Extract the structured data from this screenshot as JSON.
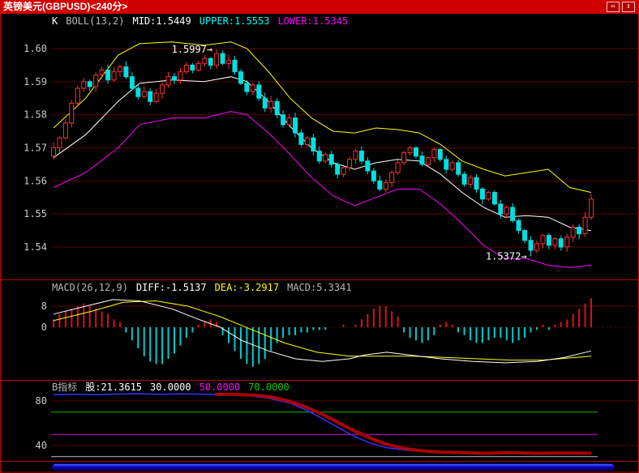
{
  "window": {
    "title": "英镑美元(GBPUSD)<240分>",
    "controls": [
      {
        "icon": "arrows-horizontal-icon",
        "glyph": "⇔"
      },
      {
        "icon": "arrows-vertical-icon",
        "glyph": "⇕"
      }
    ]
  },
  "colors": {
    "titlebar_bg": "#d00000",
    "frame": "#c00000",
    "grid": "#5a0000",
    "axis_text": "#c8c8c8",
    "up": "#ff3030",
    "down": "#00e0e0",
    "boll_upper": "#ffff00",
    "boll_mid": "#ffffff",
    "boll_lower": "#ff00ff",
    "macd_pos": "#dd1111",
    "macd_neg": "#00cccc",
    "diff": "#ffffff",
    "dea": "#ffff00",
    "b_blue": "#3333ff",
    "b_red": "#aa0000",
    "scrollbar": "#0000bb"
  },
  "main_panel": {
    "header": {
      "k": "K",
      "boll": "BOLL(13,2)",
      "mid": "MID:1.5449",
      "upper": "UPPER:1.5553",
      "lower": "LOWER:1.5345"
    },
    "annotations": {
      "high": "1.5997→",
      "low": "1.5372→"
    }
  },
  "macd_panel": {
    "header": {
      "name": "MACD(26,12,9)",
      "diff": "DIFF:-1.5137",
      "dea": "DEA:-3.2917",
      "macd": "MACD:5.3341"
    }
  },
  "b_panel": {
    "header": {
      "name": "B指标",
      "value": "股:21.3615",
      "l30": "30.0000",
      "l50": "50.0000",
      "l70": "70.0000"
    }
  },
  "chart_data": {
    "type": "candlestick",
    "symbol": "GBPUSD",
    "interval_minutes": 240,
    "price_tick_values": [
      1.6,
      1.59,
      1.58,
      1.57,
      1.56,
      1.55,
      1.54
    ],
    "high_label": {
      "index": 27,
      "value": 1.5997
    },
    "low_label": {
      "index": 79,
      "value": 1.5372
    },
    "first_open": 1.5675,
    "closes": [
      1.57,
      1.573,
      1.5775,
      1.5835,
      1.588,
      1.59,
      1.5885,
      1.592,
      1.5935,
      1.5905,
      1.593,
      1.5945,
      1.5915,
      1.588,
      1.5855,
      1.587,
      1.584,
      1.5865,
      1.589,
      1.5915,
      1.5905,
      1.593,
      1.595,
      1.5935,
      1.5955,
      1.597,
      1.595,
      1.5985,
      1.5955,
      1.5965,
      1.593,
      1.5895,
      1.587,
      1.589,
      1.585,
      1.582,
      1.584,
      1.58,
      1.577,
      1.579,
      1.5745,
      1.571,
      1.573,
      1.569,
      1.566,
      1.568,
      1.565,
      1.562,
      1.564,
      1.5665,
      1.569,
      1.566,
      1.563,
      1.56,
      1.5575,
      1.5595,
      1.5625,
      1.5655,
      1.5685,
      1.57,
      1.5675,
      1.565,
      1.567,
      1.5695,
      1.5665,
      1.5635,
      1.5655,
      1.562,
      1.559,
      1.561,
      1.5575,
      1.5545,
      1.5565,
      1.553,
      1.55,
      1.552,
      1.548,
      1.545,
      1.542,
      1.539,
      1.541,
      1.5435,
      1.5405,
      1.5425,
      1.54,
      1.543,
      1.546,
      1.544,
      1.549,
      1.5545
    ],
    "boll": {
      "period": "13,2",
      "mid_last": 1.5449,
      "upper_last": 1.5553,
      "lower_last": 1.5345,
      "upper": [
        [
          0,
          1.576
        ],
        [
          0.06,
          1.585
        ],
        [
          0.12,
          1.598
        ],
        [
          0.16,
          1.6015
        ],
        [
          0.22,
          1.602
        ],
        [
          0.28,
          1.601
        ],
        [
          0.33,
          1.602
        ],
        [
          0.36,
          1.6
        ],
        [
          0.4,
          1.593
        ],
        [
          0.44,
          1.585
        ],
        [
          0.48,
          1.579
        ],
        [
          0.52,
          1.575
        ],
        [
          0.56,
          1.5745
        ],
        [
          0.6,
          1.576
        ],
        [
          0.64,
          1.5755
        ],
        [
          0.68,
          1.5745
        ],
        [
          0.72,
          1.571
        ],
        [
          0.76,
          1.566
        ],
        [
          0.8,
          1.5635
        ],
        [
          0.84,
          1.5615
        ],
        [
          0.88,
          1.5625
        ],
        [
          0.92,
          1.5635
        ],
        [
          0.96,
          1.558
        ],
        [
          1,
          1.5565
        ]
      ],
      "mid": [
        [
          0,
          1.567
        ],
        [
          0.06,
          1.574
        ],
        [
          0.12,
          1.584
        ],
        [
          0.16,
          1.5895
        ],
        [
          0.22,
          1.5905
        ],
        [
          0.28,
          1.59
        ],
        [
          0.33,
          1.5915
        ],
        [
          0.36,
          1.59
        ],
        [
          0.4,
          1.584
        ],
        [
          0.44,
          1.5765
        ],
        [
          0.48,
          1.57
        ],
        [
          0.52,
          1.5655
        ],
        [
          0.56,
          1.5635
        ],
        [
          0.6,
          1.5655
        ],
        [
          0.64,
          1.5665
        ],
        [
          0.68,
          1.566
        ],
        [
          0.72,
          1.562
        ],
        [
          0.76,
          1.5565
        ],
        [
          0.8,
          1.552
        ],
        [
          0.84,
          1.549
        ],
        [
          0.88,
          1.5495
        ],
        [
          0.92,
          1.549
        ],
        [
          0.96,
          1.546
        ],
        [
          1,
          1.545
        ]
      ],
      "lower": [
        [
          0,
          1.558
        ],
        [
          0.06,
          1.5625
        ],
        [
          0.12,
          1.57
        ],
        [
          0.16,
          1.577
        ],
        [
          0.22,
          1.579
        ],
        [
          0.28,
          1.579
        ],
        [
          0.33,
          1.581
        ],
        [
          0.36,
          1.58
        ],
        [
          0.4,
          1.5745
        ],
        [
          0.44,
          1.568
        ],
        [
          0.48,
          1.561
        ],
        [
          0.52,
          1.5555
        ],
        [
          0.56,
          1.5525
        ],
        [
          0.6,
          1.555
        ],
        [
          0.64,
          1.5575
        ],
        [
          0.68,
          1.5575
        ],
        [
          0.72,
          1.553
        ],
        [
          0.76,
          1.547
        ],
        [
          0.8,
          1.5405
        ],
        [
          0.84,
          1.5365
        ],
        [
          0.88,
          1.5365
        ],
        [
          0.92,
          1.5345
        ],
        [
          0.96,
          1.5338
        ],
        [
          1,
          1.5345
        ]
      ]
    },
    "macd": {
      "params": "26,12,9",
      "diff_last": -1.5137,
      "dea_last": -3.2917,
      "macd_last": 5.3341,
      "ticks": [
        8,
        0
      ],
      "histogram": [
        3,
        5,
        6,
        7,
        8,
        9,
        8,
        7,
        6,
        5,
        3,
        2,
        -2,
        -5,
        -8,
        -11,
        -13,
        -14,
        -14,
        -12,
        -10,
        -7,
        -4,
        -2,
        1,
        2,
        3,
        2,
        -3,
        -6,
        -9,
        -12,
        -14,
        -15,
        -14,
        -12,
        -9,
        -6,
        -4,
        -3,
        -3,
        -2,
        -2,
        -1,
        -1,
        -1,
        0,
        0,
        1,
        0,
        1,
        3,
        5,
        7,
        8,
        8,
        6,
        4,
        -2,
        -4,
        -5,
        -6,
        -5,
        -3,
        1,
        2,
        1,
        -2,
        -3,
        -5,
        -6,
        -6,
        -5,
        -4,
        -4,
        -5,
        -6,
        -5,
        -4,
        -2,
        -1,
        1,
        -1,
        1,
        2,
        3,
        5,
        7,
        9,
        11
      ],
      "diff": [
        [
          0,
          5
        ],
        [
          0.06,
          8
        ],
        [
          0.11,
          10.5
        ],
        [
          0.16,
          10
        ],
        [
          0.22,
          7
        ],
        [
          0.27,
          3
        ],
        [
          0.31,
          0
        ],
        [
          0.35,
          -5
        ],
        [
          0.4,
          -9
        ],
        [
          0.45,
          -12
        ],
        [
          0.5,
          -13
        ],
        [
          0.55,
          -12
        ],
        [
          0.58,
          -10.5
        ],
        [
          0.62,
          -9.5
        ],
        [
          0.66,
          -10.5
        ],
        [
          0.72,
          -12
        ],
        [
          0.78,
          -13
        ],
        [
          0.84,
          -13.5
        ],
        [
          0.9,
          -13
        ],
        [
          0.95,
          -11.5
        ],
        [
          1,
          -9
        ]
      ],
      "dea": [
        [
          0,
          2.5
        ],
        [
          0.07,
          6
        ],
        [
          0.13,
          9.5
        ],
        [
          0.19,
          10
        ],
        [
          0.25,
          8
        ],
        [
          0.31,
          4
        ],
        [
          0.37,
          -1
        ],
        [
          0.43,
          -6
        ],
        [
          0.49,
          -9.5
        ],
        [
          0.55,
          -11
        ],
        [
          0.61,
          -11
        ],
        [
          0.67,
          -11
        ],
        [
          0.73,
          -11.5
        ],
        [
          0.79,
          -12
        ],
        [
          0.85,
          -12.5
        ],
        [
          0.91,
          -12.5
        ],
        [
          1,
          -11
        ]
      ]
    },
    "b": {
      "last": 21.3615,
      "ticks": [
        80,
        40
      ],
      "ref": [
        {
          "value": 70,
          "color": "#00bb00"
        },
        {
          "value": 50,
          "color": "#cc00cc"
        },
        {
          "value": 30,
          "color": "#c0c0c0"
        }
      ],
      "blue": [
        [
          0,
          85.5
        ],
        [
          0.04,
          86
        ],
        [
          0.08,
          85.5
        ],
        [
          0.12,
          86.2
        ],
        [
          0.16,
          86.5
        ],
        [
          0.2,
          86
        ],
        [
          0.24,
          86.4
        ],
        [
          0.28,
          86
        ],
        [
          0.32,
          85.6
        ],
        [
          0.36,
          84.8
        ],
        [
          0.4,
          82.5
        ],
        [
          0.44,
          78
        ],
        [
          0.47,
          72
        ],
        [
          0.5,
          64
        ],
        [
          0.53,
          56
        ],
        [
          0.56,
          48
        ],
        [
          0.59,
          42
        ],
        [
          0.62,
          38
        ],
        [
          0.66,
          35.5
        ],
        [
          0.7,
          34
        ],
        [
          0.75,
          33.5
        ],
        [
          0.8,
          33
        ],
        [
          0.85,
          33.5
        ],
        [
          0.9,
          33
        ],
        [
          0.95,
          33.5
        ],
        [
          1,
          33.2
        ]
      ],
      "red": [
        [
          0.3,
          86
        ],
        [
          0.34,
          85.8
        ],
        [
          0.38,
          85
        ],
        [
          0.41,
          83
        ],
        [
          0.44,
          79.5
        ],
        [
          0.47,
          74.5
        ],
        [
          0.5,
          68
        ],
        [
          0.53,
          60.5
        ],
        [
          0.56,
          53
        ],
        [
          0.59,
          46.5
        ],
        [
          0.62,
          41
        ],
        [
          0.65,
          37.5
        ],
        [
          0.68,
          35.5
        ],
        [
          0.72,
          34
        ],
        [
          0.76,
          33.5
        ],
        [
          0.8,
          33
        ],
        [
          0.85,
          33.5
        ],
        [
          0.9,
          33
        ],
        [
          0.95,
          33.3
        ],
        [
          1,
          33
        ]
      ]
    }
  }
}
